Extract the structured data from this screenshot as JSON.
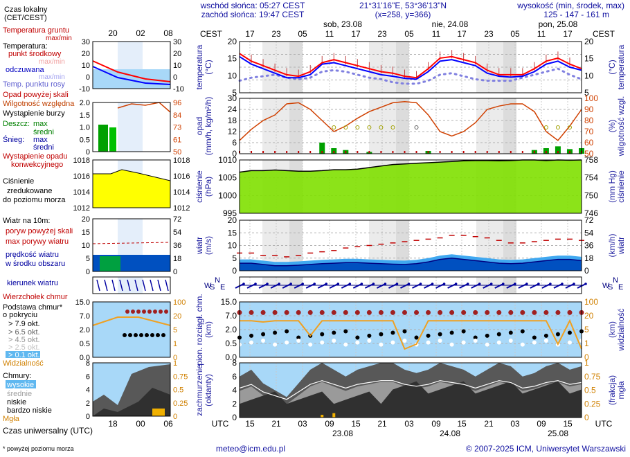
{
  "header": {
    "sunrise": "wschód słońca: 05:27 CEST",
    "sunset": "zachód słońca: 19:47 CEST",
    "coords": "21°31'16\"E, 53°36'13\"N",
    "grid": "(x=258, y=366)",
    "height_title": "wysokość (min, środek, max)",
    "heights": "125 - 147 - 161 m"
  },
  "time_axis": {
    "zone_local": "CEST",
    "zone_utc": "UTC",
    "local_ticks": [
      "17",
      "23",
      "05",
      "11",
      "17",
      "23",
      "05",
      "11",
      "17",
      "23",
      "05",
      "11",
      "17"
    ],
    "utc_ticks": [
      "15",
      "21",
      "03",
      "09",
      "15",
      "21",
      "03",
      "09",
      "15",
      "21",
      "03",
      "09",
      "15"
    ],
    "days_top": [
      "sob, 23.08",
      "nie, 24.08",
      "pon, 25.08"
    ],
    "days_bottom": [
      "23.08",
      "24.08",
      "25.08"
    ]
  },
  "legend": {
    "local_time": "Czas lokalny",
    "local_time_zone": "(CET/CEST)",
    "local_ticks": [
      "20",
      "02",
      "08"
    ],
    "utc_ticks": [
      "18",
      "00",
      "06"
    ],
    "soil_temp": "Temperatura gruntu",
    "soil_temp_sub": "max/min",
    "temperature": "Temperatura:",
    "mid_point": "punkt środkowy",
    "max_min": "max/min",
    "perceived": "odczuwana",
    "perceived_sub": "max/min",
    "dew_point": "Temp. punktu rosy",
    "precip_above": "Opad powyżej skali",
    "humidity": "Wilgotność względna",
    "storm": "Wystąpienie burzy",
    "rain": "Deszcz:",
    "snow": "Śnieg:",
    "max": "max",
    "mean": "średni",
    "precip_occ_1": "Wystąpienie opadu",
    "precip_occ_2": "konwekcyjnego",
    "pressure_1": "Ciśnienie",
    "pressure_2": "zredukowane",
    "pressure_3": "do poziomu morza",
    "wind_10m": "Wiatr na 10m:",
    "gust_above": "poryw powyżej skali",
    "gust_max": "max porywy wiatru",
    "wind_speed": "prędkość wiatru",
    "wind_area": "w środku obszaru",
    "wind_dir": "kierunek wiatru",
    "cloud_top": "Wierzchołek chmur",
    "cloud_base_1": "Podstawa chmur*",
    "cloud_base_2": "o pokryciu",
    "okt": [
      "> 7.9 okt.",
      "> 6.5 okt.",
      "> 4.5 okt.",
      "> 2.5 okt.",
      "> 0.1 okt."
    ],
    "visibility": "Widzialność",
    "clouds": "Chmury:",
    "high": "wysokie",
    "medium": "średnie",
    "low": "niskie",
    "very_low": "bardzo niskie",
    "fog": "Mgła",
    "utc_time": "Czas uniwersalny (UTC)",
    "footnote": "* powyżej poziomu morza",
    "temp_ticks": [
      "30",
      "20",
      "10",
      "0",
      "-10"
    ],
    "precip_ticks": [
      "2.0",
      "1.5",
      "1.0",
      "0.5",
      "0"
    ],
    "hum_ticks": [
      "96",
      "84",
      "73",
      "61",
      "50"
    ],
    "pres_ticks": [
      "1018",
      "1016",
      "1014",
      "1012"
    ],
    "wind_ticks": [
      "20",
      "15",
      "10",
      "5",
      "0"
    ],
    "wind_kmh": [
      "72",
      "54",
      "36",
      "18",
      "0"
    ],
    "cb_ticks": [
      "15.0",
      "7.0",
      "2.0",
      "0.5",
      "0.0"
    ],
    "vis_ticks": [
      "100",
      "20",
      "5",
      "1",
      "0"
    ],
    "cl_ticks": [
      "8",
      "6",
      "4",
      "2",
      "0"
    ],
    "fog_ticks": [
      "1",
      "0.75",
      "0.5",
      "0.25",
      "0"
    ]
  },
  "panels": {
    "temp": {
      "left": [
        "temperatura",
        "(°C)"
      ],
      "right": [
        "(°C)",
        "temperatura"
      ],
      "ticks": [
        "20",
        "15",
        "10",
        "5"
      ]
    },
    "precip": {
      "left": [
        "opad",
        "(mm/h, kg/m²/h)"
      ],
      "right": [
        "(%)",
        "wilgotność wzgl."
      ],
      "ticks": [
        "30",
        "24",
        "18",
        "12",
        "6",
        "0"
      ],
      "hum_ticks": [
        "100",
        "90",
        "80",
        "70",
        "60",
        "50"
      ]
    },
    "pres": {
      "left": [
        "ciśnienie",
        "(hPa)"
      ],
      "right": [
        "(mm Hg)",
        "ciśnienie"
      ],
      "ticks": [
        "1010",
        "1005",
        "1000",
        "995"
      ],
      "mm_ticks": [
        "758",
        "754",
        "750",
        "746"
      ]
    },
    "wind": {
      "left": [
        "wiatr",
        "(m/s)"
      ],
      "right": [
        "(km/h)",
        "wiatr"
      ],
      "ticks": [
        "20",
        "15",
        "10",
        "5",
        "0"
      ],
      "kmh_ticks": [
        "72",
        "54",
        "36",
        "18",
        "0"
      ]
    },
    "cb": {
      "left": [
        "pion. rozciągł. chm.",
        "(km)"
      ],
      "right": [
        "(km)",
        "widzialność"
      ],
      "ticks": [
        "15.0",
        "7.0",
        "2.0",
        "0.5",
        "0.0"
      ],
      "vis_ticks": [
        "100",
        "20",
        "5",
        "1",
        "0"
      ]
    },
    "cl": {
      "left": [
        "zachmurzenie",
        "(oktanty)"
      ],
      "right": [
        "(frakcja)",
        "mgła"
      ],
      "ticks": [
        "8",
        "6",
        "4",
        "2",
        "0"
      ],
      "fog_ticks": [
        "1",
        "0.75",
        "0.5",
        "0.25",
        "0"
      ]
    }
  },
  "compass": {
    "n": "N",
    "s": "S",
    "w": "W",
    "e": "E"
  },
  "footer": {
    "email": "meteo@icm.edu.pl",
    "copyright": "© 2007-2025 ICM, Uniwersytet Warszawski"
  },
  "colors": {
    "temp": "#ff0000",
    "perceived": "#0000ff",
    "dew": "#7070e0",
    "humidity": "#d04000",
    "rain": "#008000",
    "pressure_fill": "#80e000",
    "wind_fill": "#0070e0",
    "gust": "#c00000",
    "cloud_dark": "#303030",
    "sky_blue": "#a8d8f8"
  },
  "chart_data": {
    "type": "line",
    "x_labels_local": [
      "17",
      "23",
      "05",
      "11",
      "17",
      "23",
      "05",
      "11",
      "17",
      "23",
      "05",
      "11",
      "17"
    ],
    "series": [
      {
        "name": "temperatura",
        "unit": "°C",
        "values": [
          18,
          15.5,
          14,
          12.5,
          11,
          10.5,
          12,
          15,
          16,
          15,
          14,
          13,
          12,
          11.5,
          10.5,
          10,
          13,
          16.5,
          17,
          16,
          15,
          12.5,
          11,
          11,
          11,
          13,
          15.5,
          16.5,
          14.5,
          13
        ]
      },
      {
        "name": "odczuwana",
        "unit": "°C",
        "values": [
          17,
          14.5,
          13,
          11.5,
          10,
          10,
          11,
          14.5,
          15,
          14,
          13,
          12,
          11,
          10.5,
          9.8,
          9.5,
          12,
          15.5,
          16,
          15,
          14,
          11.5,
          10.5,
          10.2,
          10.5,
          12,
          14.5,
          15.5,
          13.5,
          12.5
        ]
      },
      {
        "name": "Temp. punktu rosy",
        "unit": "°C",
        "values": [
          9,
          10,
          10.5,
          11,
          10,
          9.5,
          10,
          12,
          12.5,
          12,
          11,
          10,
          9.5,
          8.5,
          8,
          8,
          9,
          11,
          11.5,
          10.5,
          9.5,
          9,
          9,
          9,
          10,
          11,
          12,
          13,
          11,
          9.5
        ]
      },
      {
        "name": "Wilgotność względna",
        "unit": "%",
        "values": [
          62,
          72,
          80,
          85,
          95,
          96,
          90,
          80,
          70,
          75,
          82,
          88,
          92,
          96,
          97,
          96,
          85,
          70,
          66,
          70,
          78,
          90,
          93,
          95,
          95,
          88,
          70,
          62,
          75,
          90
        ]
      },
      {
        "name": "ciśnienie",
        "unit": "hPa",
        "values": [
          1008.5,
          1009,
          1009,
          1009.2,
          1009,
          1008.8,
          1008.8,
          1009,
          1009.3,
          1009.3,
          1009.5,
          1010,
          1010.5,
          1011,
          1011.2,
          1011.4,
          1011.6,
          1011.8,
          1012,
          1012.2,
          1012.3,
          1012.3,
          1012.2,
          1012.3,
          1012.5,
          1012.5,
          1012.3,
          1012.5,
          1012.4,
          1012.5
        ]
      },
      {
        "name": "prędkość wiatru",
        "unit": "m/s",
        "values": [
          3,
          3,
          2.5,
          2,
          2,
          2.2,
          2.5,
          2.8,
          3,
          3.2,
          3.2,
          3,
          2.8,
          2.6,
          2.5,
          2.8,
          3.5,
          4.5,
          5,
          4.5,
          4,
          3.5,
          3,
          2.8,
          3,
          3.5,
          4,
          4.5,
          4.5,
          4
        ]
      },
      {
        "name": "max porywy wiatru",
        "unit": "m/s",
        "values": [
          7,
          7,
          6,
          6,
          5.5,
          6,
          7,
          7.5,
          8,
          9,
          9.5,
          10,
          10.5,
          11,
          11.5,
          12,
          12.5,
          13,
          14,
          14,
          13.5,
          13,
          12,
          11,
          11,
          11.5,
          12,
          12.5,
          12.5,
          12
        ]
      },
      {
        "name": "widzialność",
        "unit": "km",
        "values": [
          20,
          20,
          18,
          20,
          20,
          20,
          5,
          20,
          20,
          20,
          20,
          20,
          20,
          20,
          1,
          2,
          20,
          20,
          20,
          20,
          20,
          20,
          20,
          20,
          20,
          20,
          20,
          2,
          20,
          1
        ]
      },
      {
        "name": "mgła",
        "unit": "frakcja",
        "values": [
          0,
          0,
          0,
          0,
          0,
          0,
          0,
          0.05,
          0.08,
          0,
          0,
          0,
          0,
          0,
          0,
          0,
          0,
          0,
          0,
          0,
          0,
          0,
          0,
          0,
          0,
          0,
          0,
          0,
          0,
          0
        ]
      }
    ],
    "ylim_temp": [
      5,
      22
    ],
    "ylim_precip": [
      0,
      30
    ],
    "ylim_humidity": [
      50,
      100
    ],
    "ylim_pressure": [
      995,
      1012.5
    ],
    "ylim_wind": [
      0,
      20
    ],
    "ylim_clouds": [
      0,
      8
    ]
  }
}
